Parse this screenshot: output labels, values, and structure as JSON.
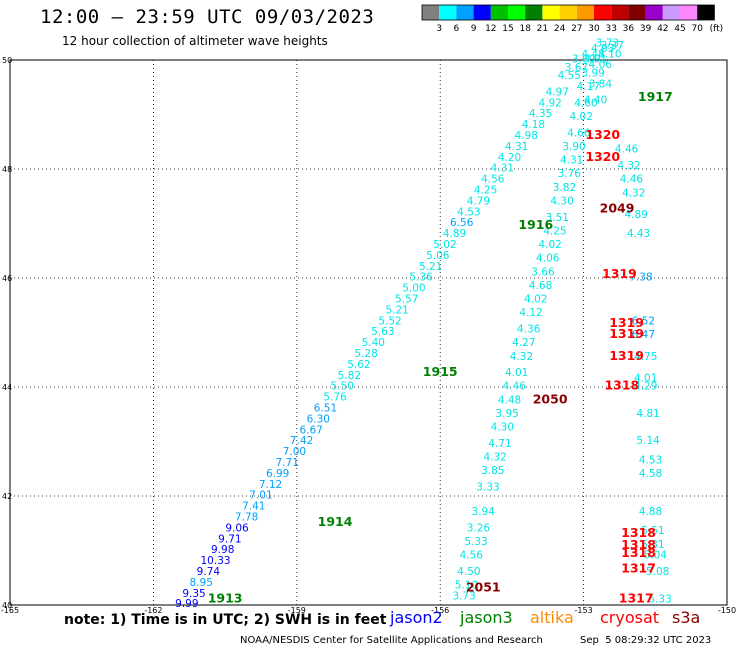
{
  "header": {
    "title": "12:00 – 23:59 UTC 09/03/2023",
    "subtitle": "12 hour collection of altimeter wave heights"
  },
  "footer": {
    "note": "note:  1) Time is in UTC;  2) SWH is in feet",
    "credit": "NOAA/NESDIS Center for Satellite Applications and Research",
    "timestamp": "Sep  5 08:29:32 UTC 2023",
    "satellites": [
      {
        "label": "jason2",
        "color": "#0000ff"
      },
      {
        "label": "jason3",
        "color": "#008000"
      },
      {
        "label": "altika",
        "color": "#ff8c00"
      },
      {
        "label": "cryosat",
        "color": "#ff0000"
      },
      {
        "label": "s3a",
        "color": "#8b0000"
      }
    ]
  },
  "colorbar": {
    "colors": [
      "#808080",
      "#00ffff",
      "#00a0ff",
      "#0000ff",
      "#00c000",
      "#00ff00",
      "#008000",
      "#ffff00",
      "#ffd000",
      "#ff9900",
      "#ff0000",
      "#c00000",
      "#800000",
      "#9900cc",
      "#cc99ff",
      "#ff88ff",
      "#000000"
    ],
    "labels": [
      "3",
      "6",
      "9",
      "12",
      "15",
      "18",
      "21",
      "24",
      "27",
      "30",
      "33",
      "36",
      "39",
      "42",
      "45",
      "70"
    ],
    "unit": "(ft)"
  },
  "chart_data": {
    "type": "scatter",
    "title": "12:00 – 23:59 UTC 09/03/2023",
    "xlim": [
      -165,
      -150
    ],
    "ylim": [
      40,
      50
    ],
    "xticks": [
      -165,
      -162,
      -159,
      -156,
      -153,
      -150
    ],
    "xtick_labels": [
      "-165",
      "-162",
      "-159",
      "-156",
      "-153",
      "-150"
    ],
    "yticks": [
      40,
      42,
      44,
      46,
      48,
      50
    ],
    "ytick_labels": [
      "40",
      "42",
      "44",
      "46",
      "48",
      "50"
    ],
    "grid": true,
    "track_labels": [
      {
        "text": "1913",
        "lon": -160.5,
        "lat": 40.05,
        "color": "#008000"
      },
      {
        "text": "1914",
        "lon": -158.2,
        "lat": 41.45,
        "color": "#008000"
      },
      {
        "text": "1915",
        "lon": -156.0,
        "lat": 44.2,
        "color": "#008000"
      },
      {
        "text": "1916",
        "lon": -154.0,
        "lat": 46.9,
        "color": "#008000"
      },
      {
        "text": "1917",
        "lon": -151.5,
        "lat": 49.25,
        "color": "#008000"
      },
      {
        "text": "2049",
        "lon": -152.3,
        "lat": 47.2,
        "color": "#8b0000"
      },
      {
        "text": "2050",
        "lon": -153.7,
        "lat": 43.7,
        "color": "#8b0000"
      },
      {
        "text": "2051",
        "lon": -155.1,
        "lat": 40.25,
        "color": "#8b0000"
      },
      {
        "text": "1320",
        "lon": -152.6,
        "lat": 48.55,
        "color": "#ff0000"
      },
      {
        "text": "1320",
        "lon": -152.6,
        "lat": 48.15,
        "color": "#ff0000"
      },
      {
        "text": "1319",
        "lon": -152.25,
        "lat": 46.0,
        "color": "#ff0000"
      },
      {
        "text": "1319",
        "lon": -152.1,
        "lat": 45.1,
        "color": "#ff0000"
      },
      {
        "text": "1319",
        "lon": -152.1,
        "lat": 44.9,
        "color": "#ff0000"
      },
      {
        "text": "1319",
        "lon": -152.1,
        "lat": 44.5,
        "color": "#ff0000"
      },
      {
        "text": "1318",
        "lon": -152.2,
        "lat": 43.95,
        "color": "#ff0000"
      },
      {
        "text": "1318",
        "lon": -151.85,
        "lat": 41.25,
        "color": "#ff0000"
      },
      {
        "text": "1318",
        "lon": -151.85,
        "lat": 41.03,
        "color": "#ff0000"
      },
      {
        "text": "1318",
        "lon": -151.85,
        "lat": 40.88,
        "color": "#ff0000"
      },
      {
        "text": "1317",
        "lon": -151.85,
        "lat": 40.6,
        "color": "#ff0000"
      },
      {
        "text": "1317",
        "lon": -151.9,
        "lat": 40.05,
        "color": "#ff0000"
      }
    ],
    "series": [
      {
        "name": "jason3",
        "points": [
          {
            "lon": -161.3,
            "lat": 39.96,
            "v": "9.99"
          },
          {
            "lon": -161.15,
            "lat": 40.15,
            "v": "9.35"
          },
          {
            "lon": -161.0,
            "lat": 40.35,
            "v": "8.95"
          },
          {
            "lon": -160.85,
            "lat": 40.55,
            "v": "9.74"
          },
          {
            "lon": -160.7,
            "lat": 40.75,
            "v": "10.33"
          },
          {
            "lon": -160.55,
            "lat": 40.95,
            "v": "9.98"
          },
          {
            "lon": -160.4,
            "lat": 41.15,
            "v": "9.71"
          },
          {
            "lon": -160.25,
            "lat": 41.35,
            "v": "9.06"
          },
          {
            "lon": -160.05,
            "lat": 41.55,
            "v": "7.78"
          },
          {
            "lon": -159.9,
            "lat": 41.75,
            "v": "7.41"
          },
          {
            "lon": -159.75,
            "lat": 41.95,
            "v": "7.01"
          },
          {
            "lon": -159.55,
            "lat": 42.15,
            "v": "7.12"
          },
          {
            "lon": -159.4,
            "lat": 42.35,
            "v": "6.99"
          },
          {
            "lon": -159.2,
            "lat": 42.55,
            "v": "7.71"
          },
          {
            "lon": -159.05,
            "lat": 42.75,
            "v": "7.00"
          },
          {
            "lon": -158.9,
            "lat": 42.95,
            "v": "7.42"
          },
          {
            "lon": -158.7,
            "lat": 43.15,
            "v": "6.67"
          },
          {
            "lon": -158.55,
            "lat": 43.35,
            "v": "6.30"
          },
          {
            "lon": -158.4,
            "lat": 43.55,
            "v": "6.51"
          },
          {
            "lon": -158.2,
            "lat": 43.75,
            "v": "5.76"
          },
          {
            "lon": -158.05,
            "lat": 43.95,
            "v": "5.50"
          },
          {
            "lon": -157.9,
            "lat": 44.15,
            "v": "5.82"
          },
          {
            "lon": -157.7,
            "lat": 44.35,
            "v": "5.62"
          },
          {
            "lon": -157.55,
            "lat": 44.55,
            "v": "5.28"
          },
          {
            "lon": -157.4,
            "lat": 44.75,
            "v": "5.40"
          },
          {
            "lon": -157.2,
            "lat": 44.95,
            "v": "5.63"
          },
          {
            "lon": -157.05,
            "lat": 45.15,
            "v": "5.52"
          },
          {
            "lon": -156.9,
            "lat": 45.35,
            "v": "5.21"
          },
          {
            "lon": -156.7,
            "lat": 45.55,
            "v": "5.57"
          },
          {
            "lon": -156.55,
            "lat": 45.75,
            "v": "5.00"
          },
          {
            "lon": -156.4,
            "lat": 45.95,
            "v": "5.36"
          },
          {
            "lon": -156.2,
            "lat": 46.15,
            "v": "5.21"
          },
          {
            "lon": -156.05,
            "lat": 46.35,
            "v": "5.06"
          },
          {
            "lon": -155.9,
            "lat": 46.55,
            "v": "5.02"
          },
          {
            "lon": -155.7,
            "lat": 46.75,
            "v": "4.89"
          },
          {
            "lon": -155.55,
            "lat": 46.95,
            "v": "6.56"
          },
          {
            "lon": -155.4,
            "lat": 47.15,
            "v": "4.53"
          },
          {
            "lon": -155.2,
            "lat": 47.35,
            "v": "4.79"
          },
          {
            "lon": -155.05,
            "lat": 47.55,
            "v": "4.25"
          },
          {
            "lon": -154.9,
            "lat": 47.75,
            "v": "4.56"
          },
          {
            "lon": -154.7,
            "lat": 47.95,
            "v": "4.31"
          },
          {
            "lon": -154.55,
            "lat": 48.15,
            "v": "4.20"
          },
          {
            "lon": -154.4,
            "lat": 48.35,
            "v": "4.31"
          },
          {
            "lon": -154.2,
            "lat": 48.55,
            "v": "4.98"
          },
          {
            "lon": -154.05,
            "lat": 48.75,
            "v": "4.18"
          },
          {
            "lon": -153.9,
            "lat": 48.95,
            "v": "4.35"
          },
          {
            "lon": -153.7,
            "lat": 49.15,
            "v": "4.92"
          },
          {
            "lon": -153.55,
            "lat": 49.35,
            "v": "4.97"
          },
          {
            "lon": -153.3,
            "lat": 49.65,
            "v": "4.55"
          },
          {
            "lon": -153.15,
            "lat": 49.8,
            "v": "3.67"
          },
          {
            "lon": -153.0,
            "lat": 49.95,
            "v": "3.69"
          },
          {
            "lon": -152.8,
            "lat": 50.05,
            "v": "4.48"
          },
          {
            "lon": -152.6,
            "lat": 50.15,
            "v": "4.03"
          },
          {
            "lon": -152.5,
            "lat": 50.25,
            "v": "3.73"
          },
          {
            "lon": -152.65,
            "lat": 49.85,
            "v": "4.06"
          },
          {
            "lon": -152.45,
            "lat": 50.05,
            "v": "4.10"
          },
          {
            "lon": -152.4,
            "lat": 50.2,
            "v": "3.37"
          },
          {
            "lon": -152.65,
            "lat": 49.5,
            "v": "3.84"
          },
          {
            "lon": -152.75,
            "lat": 49.2,
            "v": "4.40"
          }
        ]
      },
      {
        "name": "jason3-b",
        "points": [
          {
            "lon": -155.5,
            "lat": 40.1,
            "v": "3.73"
          },
          {
            "lon": -155.45,
            "lat": 40.3,
            "v": "5.10"
          },
          {
            "lon": -155.4,
            "lat": 40.55,
            "v": "4.50"
          },
          {
            "lon": -155.35,
            "lat": 40.85,
            "v": "4.56"
          },
          {
            "lon": -155.25,
            "lat": 41.1,
            "v": "5.33"
          },
          {
            "lon": -155.2,
            "lat": 41.35,
            "v": "3.26"
          },
          {
            "lon": -155.1,
            "lat": 41.65,
            "v": "3.94"
          },
          {
            "lon": -155.0,
            "lat": 42.1,
            "v": "3.33"
          },
          {
            "lon": -154.9,
            "lat": 42.4,
            "v": "3.85"
          },
          {
            "lon": -154.85,
            "lat": 42.65,
            "v": "4.32"
          },
          {
            "lon": -154.75,
            "lat": 42.9,
            "v": "4.71"
          },
          {
            "lon": -154.7,
            "lat": 43.2,
            "v": "4.30"
          },
          {
            "lon": -154.6,
            "lat": 43.45,
            "v": "3.95"
          },
          {
            "lon": -154.55,
            "lat": 43.7,
            "v": "4.48"
          },
          {
            "lon": -154.45,
            "lat": 43.95,
            "v": "4.46"
          },
          {
            "lon": -154.4,
            "lat": 44.2,
            "v": "4.01"
          },
          {
            "lon": -154.3,
            "lat": 44.5,
            "v": "4.32"
          },
          {
            "lon": -154.25,
            "lat": 44.75,
            "v": "4.27"
          },
          {
            "lon": -154.15,
            "lat": 45.0,
            "v": "4.36"
          },
          {
            "lon": -154.1,
            "lat": 45.3,
            "v": "4.12"
          },
          {
            "lon": -154.0,
            "lat": 45.55,
            "v": "4.02"
          },
          {
            "lon": -153.9,
            "lat": 45.8,
            "v": "4.68"
          },
          {
            "lon": -153.85,
            "lat": 46.05,
            "v": "3.66"
          },
          {
            "lon": -153.75,
            "lat": 46.3,
            "v": "4.06"
          },
          {
            "lon": -153.7,
            "lat": 46.55,
            "v": "4.02"
          },
          {
            "lon": -153.6,
            "lat": 46.8,
            "v": "4.25"
          },
          {
            "lon": -153.55,
            "lat": 47.05,
            "v": "3.51"
          },
          {
            "lon": -153.45,
            "lat": 47.35,
            "v": "4.30"
          },
          {
            "lon": -153.4,
            "lat": 47.6,
            "v": "3.82"
          },
          {
            "lon": -153.3,
            "lat": 47.85,
            "v": "3.76"
          },
          {
            "lon": -153.25,
            "lat": 48.1,
            "v": "4.31"
          },
          {
            "lon": -153.2,
            "lat": 48.35,
            "v": "3.90"
          },
          {
            "lon": -153.1,
            "lat": 48.6,
            "v": "4.66"
          },
          {
            "lon": -153.05,
            "lat": 48.9,
            "v": "4.02"
          },
          {
            "lon": -152.95,
            "lat": 49.15,
            "v": "4.60"
          },
          {
            "lon": -152.9,
            "lat": 49.45,
            "v": "4.17"
          },
          {
            "lon": -152.8,
            "lat": 49.7,
            "v": "3.99"
          },
          {
            "lon": -152.75,
            "lat": 49.95,
            "v": "4.91"
          }
        ]
      },
      {
        "name": "altika-mid",
        "points": [
          {
            "lon": -152.1,
            "lat": 48.3,
            "v": "4.46"
          },
          {
            "lon": -152.05,
            "lat": 48.0,
            "v": "4.32"
          },
          {
            "lon": -152.0,
            "lat": 47.75,
            "v": "4.46"
          },
          {
            "lon": -151.95,
            "lat": 47.5,
            "v": "4.32"
          },
          {
            "lon": -151.9,
            "lat": 47.1,
            "v": "4.89"
          },
          {
            "lon": -151.85,
            "lat": 46.75,
            "v": "4.43"
          },
          {
            "lon": -151.8,
            "lat": 45.95,
            "v": "7.38"
          },
          {
            "lon": -151.75,
            "lat": 45.15,
            "v": "6.52"
          },
          {
            "lon": -151.75,
            "lat": 44.9,
            "v": "6.47"
          },
          {
            "lon": -151.7,
            "lat": 44.5,
            "v": "4.75"
          },
          {
            "lon": -151.7,
            "lat": 44.1,
            "v": "4.01"
          },
          {
            "lon": -151.7,
            "lat": 43.95,
            "v": "4.29"
          },
          {
            "lon": -151.65,
            "lat": 43.45,
            "v": "4.81"
          },
          {
            "lon": -151.65,
            "lat": 42.95,
            "v": "5.14"
          },
          {
            "lon": -151.6,
            "lat": 42.6,
            "v": "4.53"
          },
          {
            "lon": -151.6,
            "lat": 42.35,
            "v": "4.58"
          },
          {
            "lon": -151.6,
            "lat": 41.65,
            "v": "4.88"
          },
          {
            "lon": -151.55,
            "lat": 41.3,
            "v": "5.51"
          },
          {
            "lon": -151.55,
            "lat": 41.05,
            "v": "5.31"
          },
          {
            "lon": -151.5,
            "lat": 40.85,
            "v": "5.04"
          },
          {
            "lon": -151.45,
            "lat": 40.55,
            "v": "5.08"
          },
          {
            "lon": -151.4,
            "lat": 40.05,
            "v": "5.33"
          }
        ]
      }
    ]
  }
}
